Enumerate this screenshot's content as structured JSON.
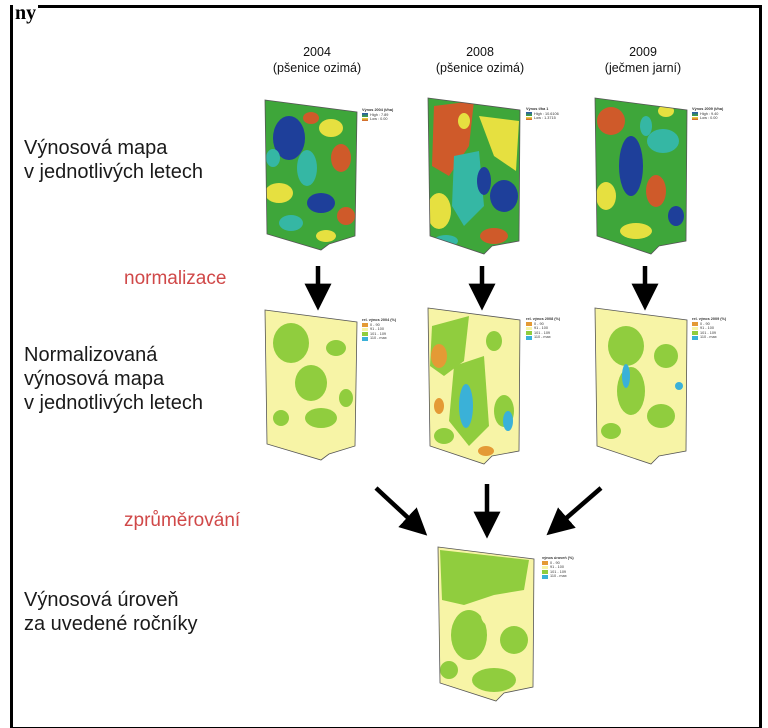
{
  "title_fragment": "ny",
  "colors": {
    "label_red": "#d04848",
    "orange": "#e49a35",
    "yellow": "#f7f4a6",
    "green": "#90cd3e",
    "cyan": "#3ab1d8",
    "raw_blue": "#1e3f9a",
    "raw_teal": "#35b7a4",
    "raw_green": "#3ea63a",
    "raw_yellow": "#e6e040",
    "raw_orange": "#cf5a2a"
  },
  "columns": [
    {
      "year": "2004",
      "crop": "(pšenice ozimá)"
    },
    {
      "year": "2008",
      "crop": "(pšenice ozimá)"
    },
    {
      "year": "2009",
      "crop": "(ječmen jarní)"
    }
  ],
  "rows": {
    "raw": {
      "lines": [
        "Výnosová mapa",
        "v jednotlivých letech"
      ]
    },
    "normalized": {
      "lines": [
        "Normalizovaná",
        "výnosová mapa",
        "v jednotlivých letech"
      ]
    },
    "final": {
      "lines": [
        "Výnosová úroveň",
        "za uvedené ročníky"
      ]
    }
  },
  "steps": {
    "normalize": "normalizace",
    "average": "zprůměrování"
  },
  "raw_legends": [
    {
      "title": "Výnos 2004 (t/ha)",
      "high": "High : 7.89",
      "low": "Low : 0.00"
    },
    {
      "title": "Výnos t/ha 1",
      "high": "High : 10.6106",
      "low": "Low : 1.3715"
    },
    {
      "title": "Výnos 2009 (t/ha)",
      "high": "High : 9.40",
      "low": "Low : 0.00"
    }
  ],
  "norm_legends": [
    {
      "title": "rel. výnos 2004 (%)",
      "items": [
        "0 - 90",
        "91 - 100",
        "101 - 109",
        "110 - max"
      ]
    },
    {
      "title": "rel. výnos 2008 (%)",
      "items": [
        "0 - 90",
        "91 - 100",
        "101 - 109",
        "110 - max"
      ]
    },
    {
      "title": "rel. výnos 2009 (%)",
      "items": [
        "0 - 90",
        "91 - 100",
        "101 - 109",
        "110 - max"
      ]
    }
  ],
  "final_legend": {
    "title": "výnos úroveň (%)",
    "items": [
      "0 - 90",
      "91 - 100",
      "101 - 109",
      "110 - max"
    ]
  }
}
